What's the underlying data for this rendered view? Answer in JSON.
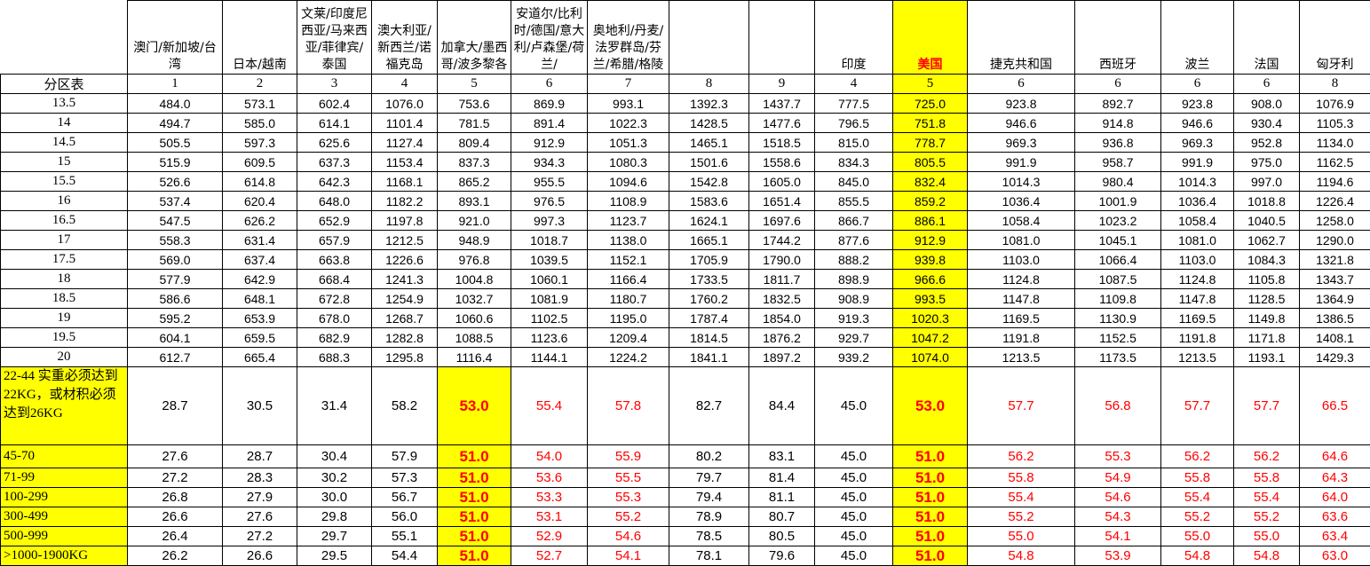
{
  "colors": {
    "highlight": "#ffff00",
    "alert": "#ff0000"
  },
  "header": {
    "corner": "",
    "columns": [
      "澳门/新加坡/台湾",
      "日本/越南",
      "文莱/印度尼西亚/马来西亚/菲律宾/泰国",
      "澳大利亚/新西兰/诺福克岛",
      "加拿大/墨西哥/波多黎各",
      "安道尔/比利时/德国/意大利/卢森堡/荷兰/",
      "奥地利/丹麦/法罗群岛/芬兰/希腊/格陵",
      "",
      "",
      "印度",
      "美国",
      "捷克共和国",
      "西班牙",
      "波兰",
      "法国",
      "匈牙利"
    ]
  },
  "zone_row": {
    "label": "分区表",
    "values": [
      "1",
      "2",
      "3",
      "4",
      "5",
      "6",
      "7",
      "8",
      "9",
      "4",
      "5",
      "6",
      "6",
      "6",
      "6",
      "8"
    ]
  },
  "weight_rows": [
    {
      "label": "13.5",
      "values": [
        "484.0",
        "573.1",
        "602.4",
        "1076.0",
        "753.6",
        "869.9",
        "993.1",
        "1392.3",
        "1437.7",
        "777.5",
        "725.0",
        "923.8",
        "892.7",
        "923.8",
        "908.0",
        "1076.9"
      ]
    },
    {
      "label": "14",
      "values": [
        "494.7",
        "585.0",
        "614.1",
        "1101.4",
        "781.5",
        "891.4",
        "1022.3",
        "1428.5",
        "1477.6",
        "796.5",
        "751.8",
        "946.6",
        "914.8",
        "946.6",
        "930.4",
        "1105.3"
      ]
    },
    {
      "label": "14.5",
      "values": [
        "505.5",
        "597.3",
        "625.6",
        "1127.4",
        "809.4",
        "912.9",
        "1051.3",
        "1465.1",
        "1518.5",
        "815.0",
        "778.7",
        "969.3",
        "936.8",
        "969.3",
        "952.8",
        "1134.0"
      ]
    },
    {
      "label": "15",
      "values": [
        "515.9",
        "609.5",
        "637.3",
        "1153.4",
        "837.3",
        "934.3",
        "1080.3",
        "1501.6",
        "1558.6",
        "834.3",
        "805.5",
        "991.9",
        "958.7",
        "991.9",
        "975.0",
        "1162.5"
      ]
    },
    {
      "label": "15.5",
      "values": [
        "526.6",
        "614.8",
        "642.3",
        "1168.1",
        "865.2",
        "955.5",
        "1094.6",
        "1542.8",
        "1605.0",
        "845.0",
        "832.4",
        "1014.3",
        "980.4",
        "1014.3",
        "997.0",
        "1194.6"
      ]
    },
    {
      "label": "16",
      "values": [
        "537.4",
        "620.4",
        "648.0",
        "1182.2",
        "893.1",
        "976.5",
        "1108.9",
        "1583.6",
        "1651.4",
        "855.5",
        "859.2",
        "1036.4",
        "1001.9",
        "1036.4",
        "1018.8",
        "1226.4"
      ]
    },
    {
      "label": "16.5",
      "values": [
        "547.5",
        "626.2",
        "652.9",
        "1197.8",
        "921.0",
        "997.3",
        "1123.7",
        "1624.1",
        "1697.6",
        "866.7",
        "886.1",
        "1058.4",
        "1023.2",
        "1058.4",
        "1040.5",
        "1258.0"
      ]
    },
    {
      "label": "17",
      "values": [
        "558.3",
        "631.4",
        "657.9",
        "1212.5",
        "948.9",
        "1018.7",
        "1138.0",
        "1665.1",
        "1744.2",
        "877.6",
        "912.9",
        "1081.0",
        "1045.1",
        "1081.0",
        "1062.7",
        "1290.0"
      ]
    },
    {
      "label": "17.5",
      "values": [
        "569.0",
        "637.4",
        "663.8",
        "1226.6",
        "976.8",
        "1039.5",
        "1152.1",
        "1705.9",
        "1790.0",
        "888.2",
        "939.8",
        "1103.0",
        "1066.4",
        "1103.0",
        "1084.3",
        "1321.8"
      ]
    },
    {
      "label": "18",
      "values": [
        "577.9",
        "642.9",
        "668.4",
        "1241.3",
        "1004.8",
        "1060.1",
        "1166.4",
        "1733.5",
        "1811.7",
        "898.9",
        "966.6",
        "1124.8",
        "1087.5",
        "1124.8",
        "1105.8",
        "1343.7"
      ]
    },
    {
      "label": "18.5",
      "values": [
        "586.6",
        "648.1",
        "672.8",
        "1254.9",
        "1032.7",
        "1081.9",
        "1180.7",
        "1760.2",
        "1832.5",
        "908.9",
        "993.5",
        "1147.8",
        "1109.8",
        "1147.8",
        "1128.5",
        "1364.9"
      ]
    },
    {
      "label": "19",
      "values": [
        "595.2",
        "653.9",
        "678.0",
        "1268.7",
        "1060.6",
        "1102.5",
        "1195.0",
        "1787.4",
        "1854.0",
        "919.3",
        "1020.3",
        "1169.5",
        "1130.9",
        "1169.5",
        "1149.8",
        "1386.5"
      ]
    },
    {
      "label": "19.5",
      "values": [
        "604.1",
        "659.5",
        "682.9",
        "1282.8",
        "1088.5",
        "1123.6",
        "1209.4",
        "1814.5",
        "1876.2",
        "929.7",
        "1047.2",
        "1191.8",
        "1152.5",
        "1191.8",
        "1171.8",
        "1408.1"
      ]
    },
    {
      "label": "20",
      "values": [
        "612.7",
        "665.4",
        "688.3",
        "1295.8",
        "1116.4",
        "1144.1",
        "1224.2",
        "1841.1",
        "1897.2",
        "939.2",
        "1074.0",
        "1213.5",
        "1173.5",
        "1213.5",
        "1193.1",
        "1429.3"
      ]
    }
  ],
  "bracket_rows": [
    {
      "label": "22-44 实重必须达到22KG，或材积必须达到26KG",
      "values": [
        "28.7",
        "30.5",
        "31.4",
        "58.2",
        "53.0",
        "55.4",
        "57.8",
        "82.7",
        "84.4",
        "45.0",
        "53.0",
        "57.7",
        "56.8",
        "57.7",
        "57.7",
        "66.5"
      ]
    },
    {
      "label": "45-70",
      "values": [
        "27.6",
        "28.7",
        "30.4",
        "57.9",
        "51.0",
        "54.0",
        "55.9",
        "80.2",
        "83.1",
        "45.0",
        "51.0",
        "56.2",
        "55.3",
        "56.2",
        "56.2",
        "64.6"
      ]
    },
    {
      "label": "71-99",
      "values": [
        "27.2",
        "28.3",
        "30.2",
        "57.3",
        "51.0",
        "53.6",
        "55.5",
        "79.7",
        "81.4",
        "45.0",
        "51.0",
        "55.8",
        "54.9",
        "55.8",
        "55.8",
        "64.3"
      ]
    },
    {
      "label": "100-299",
      "values": [
        "26.8",
        "27.9",
        "30.0",
        "56.7",
        "51.0",
        "53.3",
        "55.3",
        "79.4",
        "81.1",
        "45.0",
        "51.0",
        "55.4",
        "54.6",
        "55.4",
        "55.4",
        "64.0"
      ]
    },
    {
      "label": "300-499",
      "values": [
        "26.6",
        "27.6",
        "29.8",
        "56.0",
        "51.0",
        "53.1",
        "55.2",
        "78.9",
        "80.7",
        "45.0",
        "51.0",
        "55.2",
        "54.3",
        "55.2",
        "55.2",
        "63.6"
      ]
    },
    {
      "label": "500-999",
      "values": [
        "26.4",
        "27.2",
        "29.7",
        "55.1",
        "51.0",
        "52.9",
        "54.6",
        "78.5",
        "80.5",
        "45.0",
        "51.0",
        "55.0",
        "54.1",
        "55.0",
        "55.0",
        "63.4"
      ]
    },
    {
      "label": ">1000-1900KG",
      "values": [
        "26.2",
        "26.6",
        "29.5",
        "54.4",
        "51.0",
        "52.7",
        "54.1",
        "78.1",
        "79.6",
        "45.0",
        "51.0",
        "54.8",
        "53.9",
        "54.8",
        "54.8",
        "63.0"
      ]
    }
  ]
}
